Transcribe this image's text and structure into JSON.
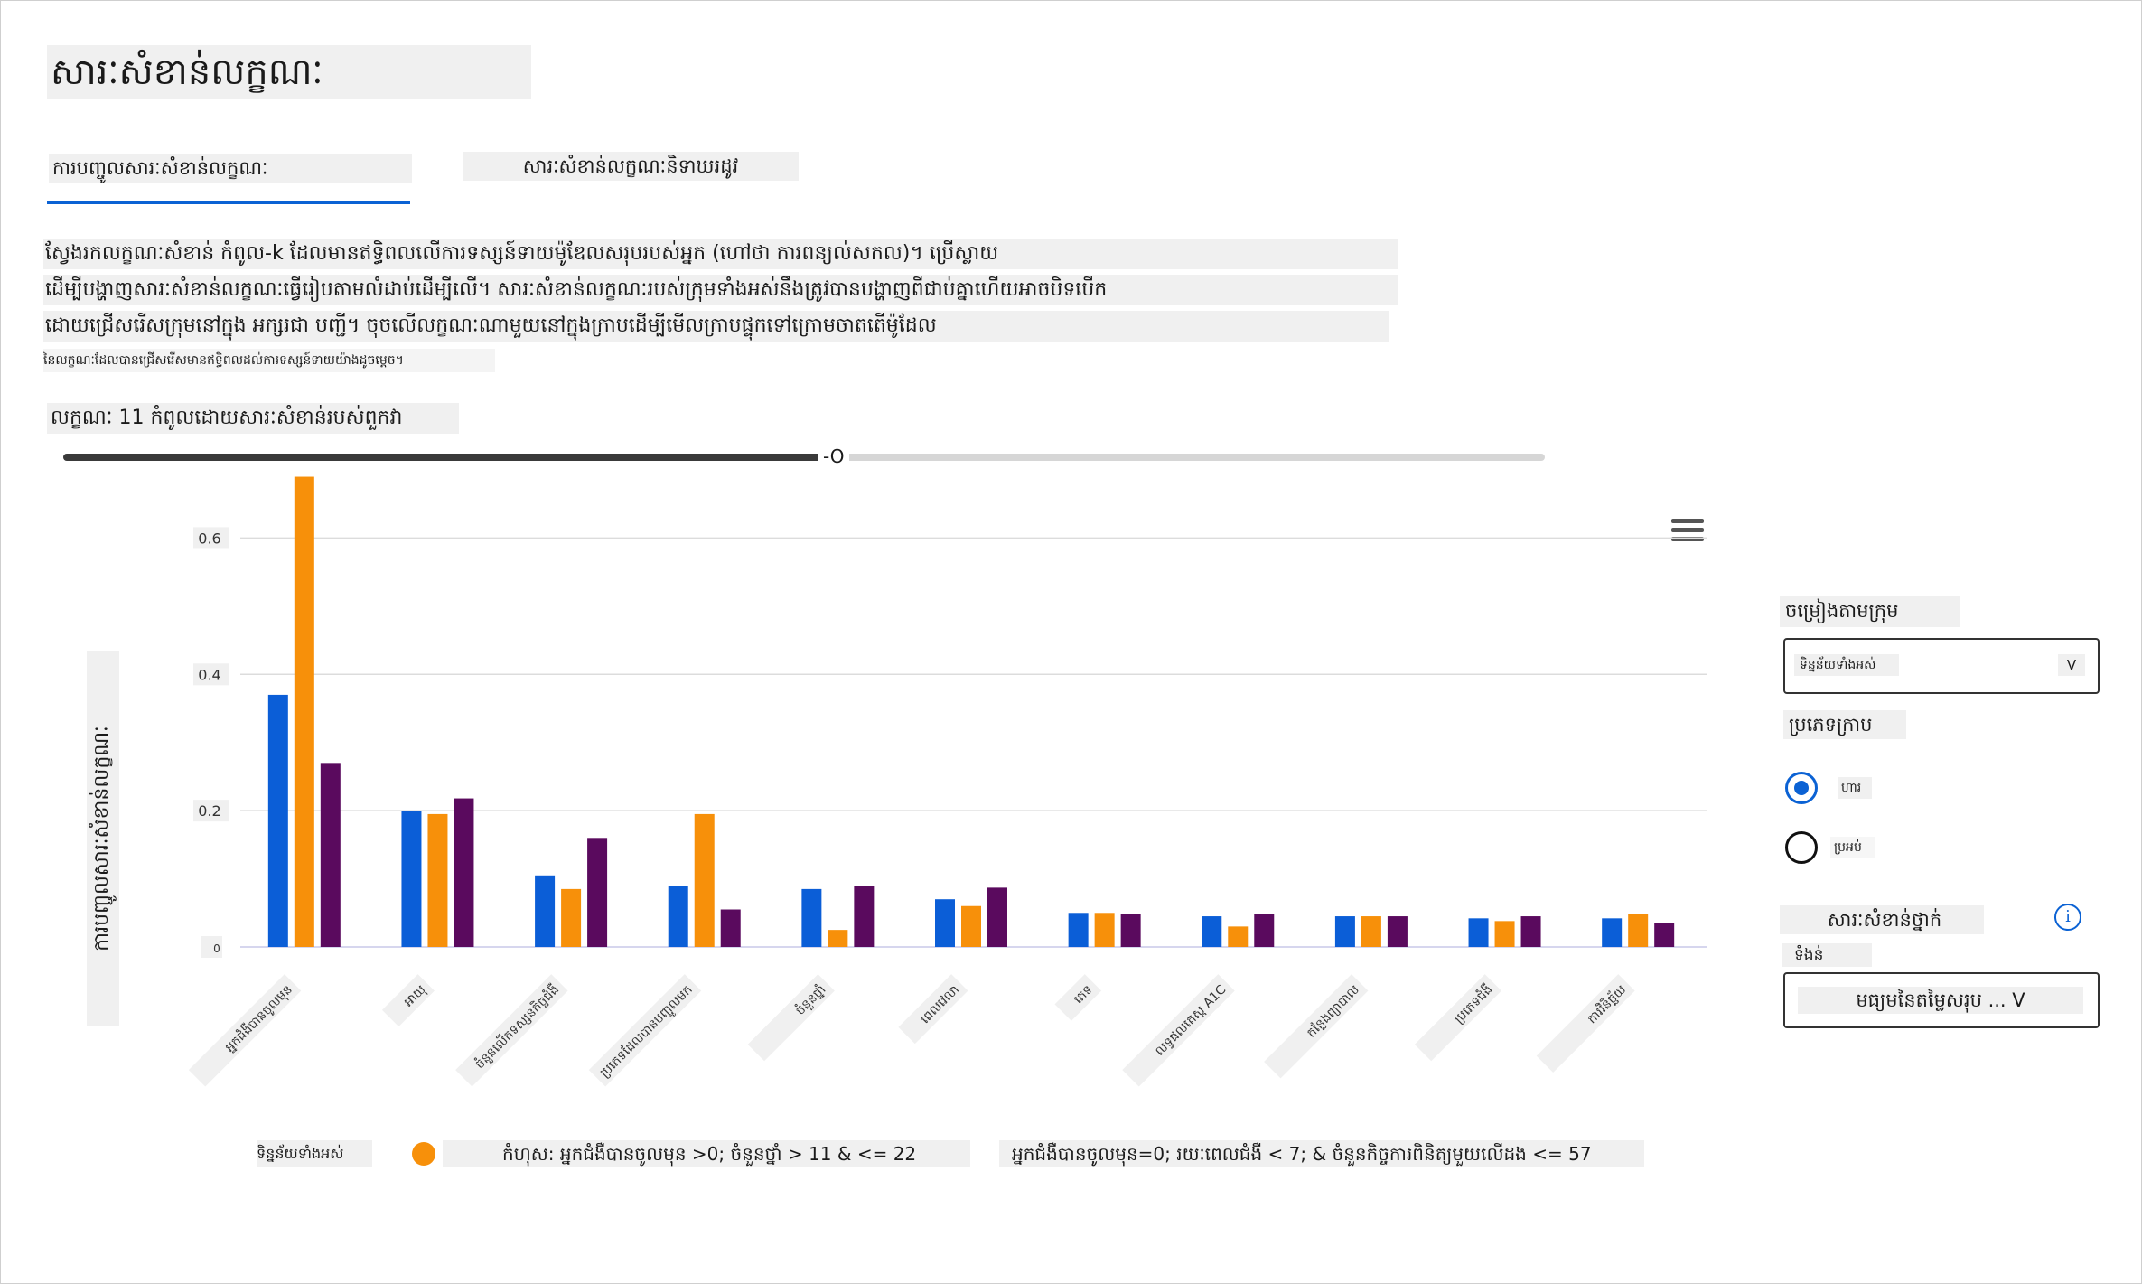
{
  "page": {
    "title": "សារៈសំខាន់លក្ខណៈ",
    "tabs": [
      {
        "label": "ការបញ្ចូលសារៈសំខាន់លក្ខណៈ",
        "active": true
      },
      {
        "label": "សារៈសំខាន់លក្ខណៈនិទាឃរដូវ",
        "active": false
      }
    ],
    "description": [
      "ស្វែងរកលក្ខណៈសំខាន់ កំពូល-k ដែលមានឥទ្ធិពលលើការទស្សន៍ទាយម៉ូឌែលសរុបរបស់អ្នក (ហៅថា ការពន្យល់សកល)។ ប្រើស្លាយ",
      "ដើម្បីបង្ហាញសារៈសំខាន់លក្ខណៈធ្វើរៀបតាមលំដាប់ដើម្បីលើ។ សារៈសំខាន់លក្ខណៈរបស់ក្រុមទាំងអស់នឹងត្រូវបានបង្ហាញពីជាប់គ្នាហើយអាចបិទបើក",
      "ដោយជ្រើសរើសក្រុមនៅក្នុង អក្សរជា បញ្ជី។ ចុចលើលក្ខណៈណាមួយនៅក្នុងក្រាបដើម្បីមើលក្រាបផ្ទុកទៅក្រោមចាតតើម៉ូដែល",
      "នៃលក្ខណៈដែលបានជ្រើសរើសមានឥទ្ធិពលដល់ការទស្សន៍ទាយយ៉ាងដូចម្តេច។"
    ],
    "slider": {
      "label": "លក្ខណៈ 11 កំពូលដោយសារៈសំខាន់របស់ពួកវា",
      "thumb_text": "-O",
      "value_fraction": 0.52
    },
    "side_panel": {
      "sort_label": "ចម្រៀងតាមក្រុម",
      "sort_value": "ទិន្នន័យទាំងអស់",
      "sort_arrow": "V",
      "chart_type_label": "ប្រភេទក្រាប",
      "radio_options": [
        {
          "label": "ហារ",
          "selected": true
        },
        {
          "label": "ប្រអប់",
          "selected": false
        }
      ],
      "importance_label": "សារៈសំខាន់ថ្នាក់",
      "weight_label": "ទំងន់",
      "weight_value": "មធ្យមនៃតម្លៃសរុប ... V",
      "info_icon_text": "i"
    },
    "legend": [
      {
        "label": "ទិន្នន័យទាំងអស់",
        "color": "#0b5ed7"
      },
      {
        "label": "កំហុស: អ្នកជំងឺបានចូលមុន >0; ចំនួនថ្នាំ > 11 & <= 22",
        "color": "#f7900a"
      },
      {
        "label": "អ្នកជំងឺបានចូលមុន=0; រយៈពេលជំងឺ < 7; & ចំនួនកិច្ចការពិនិត្យមួយលើដង <= 57",
        "color": "#5a0a5e"
      }
    ],
    "menu_icon": "hamburger-menu-icon"
  },
  "chart_data": {
    "type": "bar",
    "ylabel": "ការបញ្ចូលសារៈសំខាន់លក្ខណៈ",
    "xlabel": "",
    "ylim": [
      0,
      0.7
    ],
    "yticks": [
      "0.6",
      "0.4",
      "0.2",
      "0"
    ],
    "ytick_values": [
      0.6,
      0.4,
      0.2,
      0
    ],
    "grid": true,
    "categories": [
      "អ្នកជំងឺបានចូលមុន",
      "អាយុ",
      "ចំនួនលើកទស្សនកិច្ចជំងឺ",
      "ប្រភេទដែលបានបញ្ចូលមក",
      "ចំនួនថ្នាំ",
      "ពេលវេលា",
      "ភេទ",
      "លទ្ធផលតេស្ត A1C",
      "កន្លែងព្យាបាល",
      "ប្រភេទជំងឺ",
      "ការវិនិច្ឆ័យ"
    ],
    "series": [
      {
        "name": "ទិន្នន័យទាំងអស់",
        "color": "#0b5ed7",
        "values": [
          0.37,
          0.2,
          0.105,
          0.09,
          0.085,
          0.07,
          0.05,
          0.045,
          0.045,
          0.042,
          0.042
        ]
      },
      {
        "name": "កំហុស: អ្នកជំងឺបានចូលមុន >0; ចំនួនថ្នាំ > 11 & <= 22",
        "color": "#f7900a",
        "values": [
          0.69,
          0.195,
          0.085,
          0.195,
          0.025,
          0.06,
          0.05,
          0.03,
          0.045,
          0.038,
          0.048
        ]
      },
      {
        "name": "អ្នកជំងឺបានចូលមុន=0; រយៈពេលជំងឺ < 7; & ចំនួនកិច្ចការពិនិត្យមួយលើដង <= 57",
        "color": "#5a0a5e",
        "values": [
          0.27,
          0.218,
          0.16,
          0.055,
          0.09,
          0.087,
          0.048,
          0.048,
          0.045,
          0.045,
          0.035
        ]
      }
    ]
  }
}
